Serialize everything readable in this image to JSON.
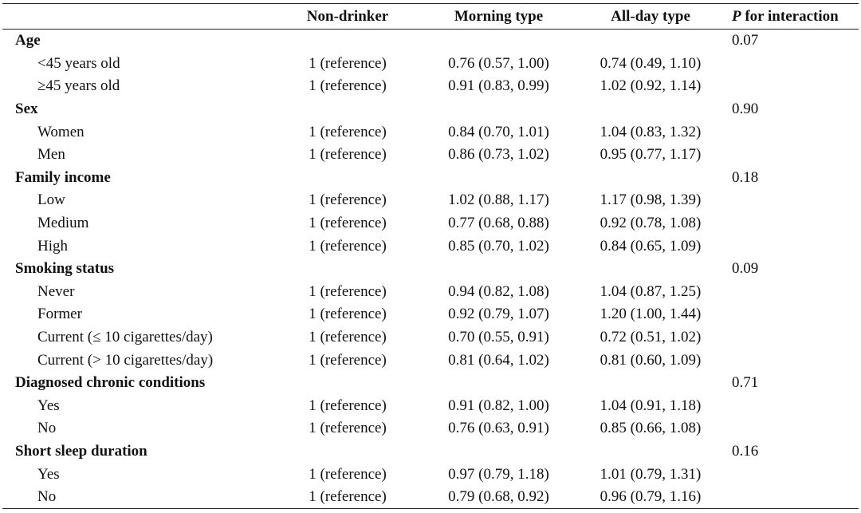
{
  "headers": [
    "",
    "Non-drinker",
    "Morning type",
    "All-day type",
    "for interaction"
  ],
  "p_italic": "P",
  "groups": [
    {
      "name": "Age",
      "p": "0.07",
      "rows": [
        {
          "label": "<45 years old",
          "non": "1 (reference)",
          "morning": "0.76 (0.57, 1.00)",
          "allday": "0.74 (0.49, 1.10)"
        },
        {
          "label": "≥45 years old",
          "non": "1 (reference)",
          "morning": "0.91 (0.83, 0.99)",
          "allday": "1.02 (0.92, 1.14)"
        }
      ]
    },
    {
      "name": "Sex",
      "p": "0.90",
      "rows": [
        {
          "label": "Women",
          "non": "1 (reference)",
          "morning": "0.84 (0.70, 1.01)",
          "allday": "1.04 (0.83, 1.32)"
        },
        {
          "label": "Men",
          "non": "1 (reference)",
          "morning": "0.86 (0.73, 1.02)",
          "allday": "0.95 (0.77, 1.17)"
        }
      ]
    },
    {
      "name": "Family income",
      "p": "0.18",
      "rows": [
        {
          "label": "Low",
          "non": "1 (reference)",
          "morning": "1.02 (0.88, 1.17)",
          "allday": "1.17 (0.98, 1.39)"
        },
        {
          "label": "Medium",
          "non": "1 (reference)",
          "morning": "0.77 (0.68, 0.88)",
          "allday": "0.92 (0.78, 1.08)"
        },
        {
          "label": "High",
          "non": "1 (reference)",
          "morning": "0.85 (0.70, 1.02)",
          "allday": "0.84 (0.65, 1.09)"
        }
      ]
    },
    {
      "name": "Smoking status",
      "p": "0.09",
      "rows": [
        {
          "label": "Never",
          "non": "1 (reference)",
          "morning": "0.94 (0.82, 1.08)",
          "allday": "1.04 (0.87, 1.25)"
        },
        {
          "label": "Former",
          "non": "1 (reference)",
          "morning": "0.92 (0.79, 1.07)",
          "allday": "1.20 (1.00, 1.44)"
        },
        {
          "label": "Current (≤ 10 cigarettes/day)",
          "non": "1 (reference)",
          "morning": "0.70 (0.55, 0.91)",
          "allday": "0.72 (0.51, 1.02)"
        },
        {
          "label": "Current (> 10 cigarettes/day)",
          "non": "1 (reference)",
          "morning": "0.81 (0.64, 1.02)",
          "allday": "0.81 (0.60, 1.09)"
        }
      ]
    },
    {
      "name": "Diagnosed chronic conditions",
      "p": "0.71",
      "rows": [
        {
          "label": "Yes",
          "non": "1 (reference)",
          "morning": "0.91 (0.82, 1.00)",
          "allday": "1.04 (0.91, 1.18)"
        },
        {
          "label": "No",
          "non": "1 (reference)",
          "morning": "0.76 (0.63, 0.91)",
          "allday": "0.85 (0.66, 1.08)"
        }
      ]
    },
    {
      "name": "Short sleep duration",
      "p": "0.16",
      "rows": [
        {
          "label": "Yes",
          "non": "1 (reference)",
          "morning": "0.97 (0.79, 1.18)",
          "allday": "1.01 (0.79, 1.31)"
        },
        {
          "label": "No",
          "non": "1 (reference)",
          "morning": "0.79 (0.68, 0.92)",
          "allday": "0.96 (0.79, 1.16)"
        }
      ]
    }
  ]
}
